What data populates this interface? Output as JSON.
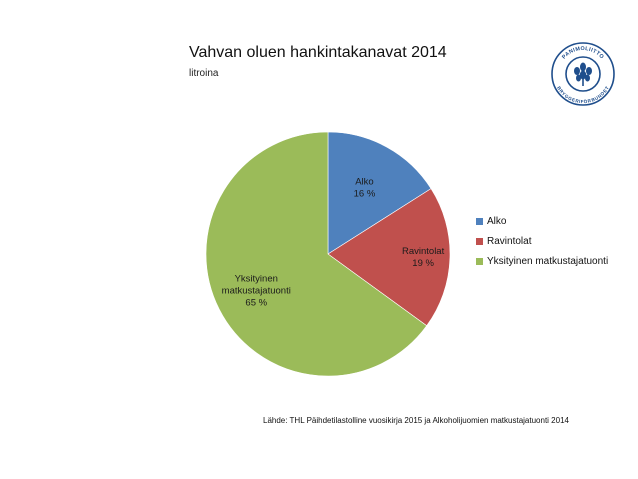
{
  "chart_data": {
    "type": "pie",
    "title": "Vahvan oluen hankintakanavat 2014",
    "subtitle": "litroina",
    "slices": [
      {
        "name": "Alko",
        "value": 16,
        "label": "16 %",
        "label_lines": [
          "Alko",
          "16 %"
        ],
        "color": "#4f81bd"
      },
      {
        "name": "Ravintolat",
        "value": 19,
        "label": "19 %",
        "label_lines": [
          "Ravintolat",
          "19 %"
        ],
        "color": "#c0504d"
      },
      {
        "name": "Yksityinen matkustajatuonti",
        "value": 65,
        "label": "65 %",
        "label_lines": [
          "Yksityinen",
          "matkustajatuonti",
          "65 %"
        ],
        "color": "#9bbb59"
      }
    ],
    "legend_position": "right",
    "start_angle_deg": 0,
    "direction": "clockwise"
  },
  "source_note": "Lähde: THL Päihdetilastolline vuosikirja 2015 ja Alkoholijuomien matkustajatuonti 2014",
  "logo": {
    "text_top": "PANIMOLIITTO",
    "text_bottom": "BRYGGERIFÖRBUNDET",
    "color": "#1f4e8c"
  }
}
